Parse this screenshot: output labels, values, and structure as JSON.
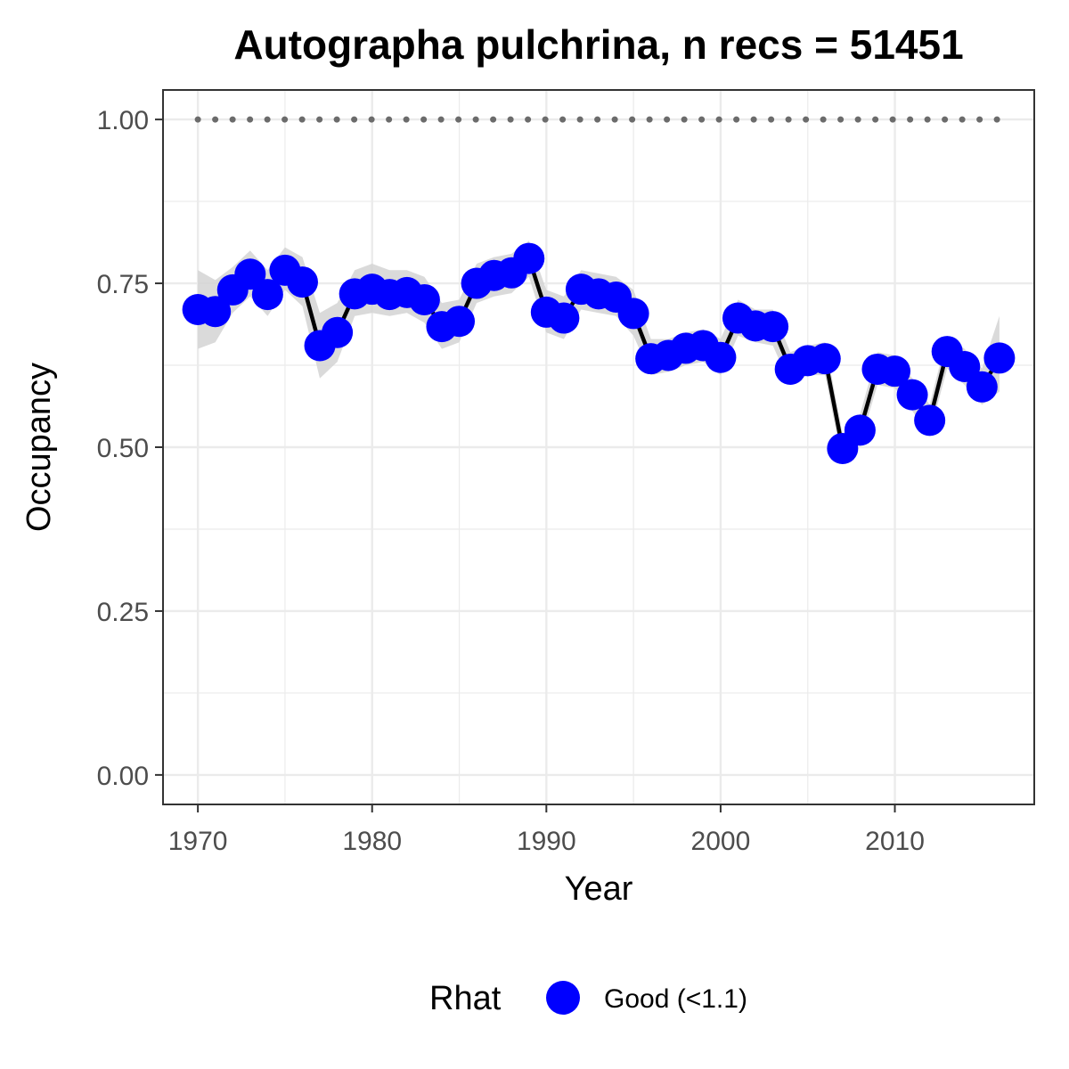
{
  "chart_data": {
    "type": "line",
    "title": "Autographa pulchrina, n recs = 51451",
    "xlabel": "Year",
    "ylabel": "Occupancy",
    "xlim": [
      1968,
      2018
    ],
    "ylim": [
      -0.045,
      1.045
    ],
    "x_ticks": [
      1970,
      1980,
      1990,
      2000,
      2010
    ],
    "x_tick_labels": [
      "1970",
      "1980",
      "1990",
      "2000",
      "2010"
    ],
    "y_ticks": [
      0,
      0.25,
      0.5,
      0.75,
      1.0
    ],
    "y_tick_labels": [
      "0.00",
      "0.25",
      "0.50",
      "0.75",
      "1.00"
    ],
    "grid": true,
    "legend": {
      "title": "Rhat",
      "position": "bottom",
      "entries": [
        {
          "label": "Good (<1.1)",
          "color": "#0000ff"
        }
      ]
    },
    "colors": {
      "points": "#0000ff",
      "line": "#000000",
      "ribbon": "#d3d3d3",
      "reference": "#6b6b6b",
      "grid": "#ebebeb",
      "border": "#333333"
    },
    "reference_line": {
      "y": 1.0,
      "style": "dotted"
    },
    "series": [
      {
        "x": [
          1970,
          1971,
          1972,
          1973,
          1974,
          1975,
          1976,
          1977,
          1978,
          1979,
          1980,
          1981,
          1982,
          1983,
          1984,
          1985,
          1986,
          1987,
          1988,
          1989,
          1990,
          1991,
          1992,
          1993,
          1994,
          1995,
          1996,
          1997,
          1998,
          1999,
          2000,
          2001,
          2002,
          2003,
          2004,
          2005,
          2006,
          2007,
          2008,
          2009,
          2010,
          2011,
          2012,
          2013,
          2014,
          2015,
          2016
        ],
        "y": [
          0.71,
          0.707,
          0.74,
          0.764,
          0.733,
          0.77,
          0.752,
          0.655,
          0.675,
          0.734,
          0.741,
          0.733,
          0.736,
          0.725,
          0.684,
          0.692,
          0.75,
          0.762,
          0.766,
          0.788,
          0.706,
          0.697,
          0.741,
          0.734,
          0.729,
          0.704,
          0.635,
          0.64,
          0.651,
          0.655,
          0.637,
          0.697,
          0.685,
          0.684,
          0.619,
          0.632,
          0.635,
          0.498,
          0.526,
          0.619,
          0.616,
          0.58,
          0.541,
          0.646,
          0.623,
          0.592,
          0.636
        ],
        "ci_lower": [
          0.65,
          0.66,
          0.705,
          0.73,
          0.7,
          0.74,
          0.715,
          0.605,
          0.63,
          0.7,
          0.705,
          0.7,
          0.705,
          0.69,
          0.65,
          0.66,
          0.72,
          0.73,
          0.735,
          0.76,
          0.675,
          0.665,
          0.71,
          0.705,
          0.7,
          0.67,
          0.61,
          0.615,
          0.625,
          0.63,
          0.61,
          0.67,
          0.66,
          0.655,
          0.595,
          0.61,
          0.61,
          0.475,
          0.505,
          0.595,
          0.59,
          0.555,
          0.52,
          0.62,
          0.595,
          0.565,
          0.585
        ],
        "ci_upper": [
          0.77,
          0.755,
          0.775,
          0.8,
          0.77,
          0.805,
          0.79,
          0.705,
          0.72,
          0.77,
          0.78,
          0.77,
          0.77,
          0.76,
          0.72,
          0.725,
          0.78,
          0.79,
          0.795,
          0.815,
          0.74,
          0.73,
          0.77,
          0.765,
          0.76,
          0.74,
          0.665,
          0.665,
          0.675,
          0.68,
          0.665,
          0.725,
          0.71,
          0.71,
          0.645,
          0.655,
          0.66,
          0.52,
          0.55,
          0.645,
          0.64,
          0.605,
          0.565,
          0.67,
          0.65,
          0.62,
          0.7
        ]
      }
    ]
  }
}
